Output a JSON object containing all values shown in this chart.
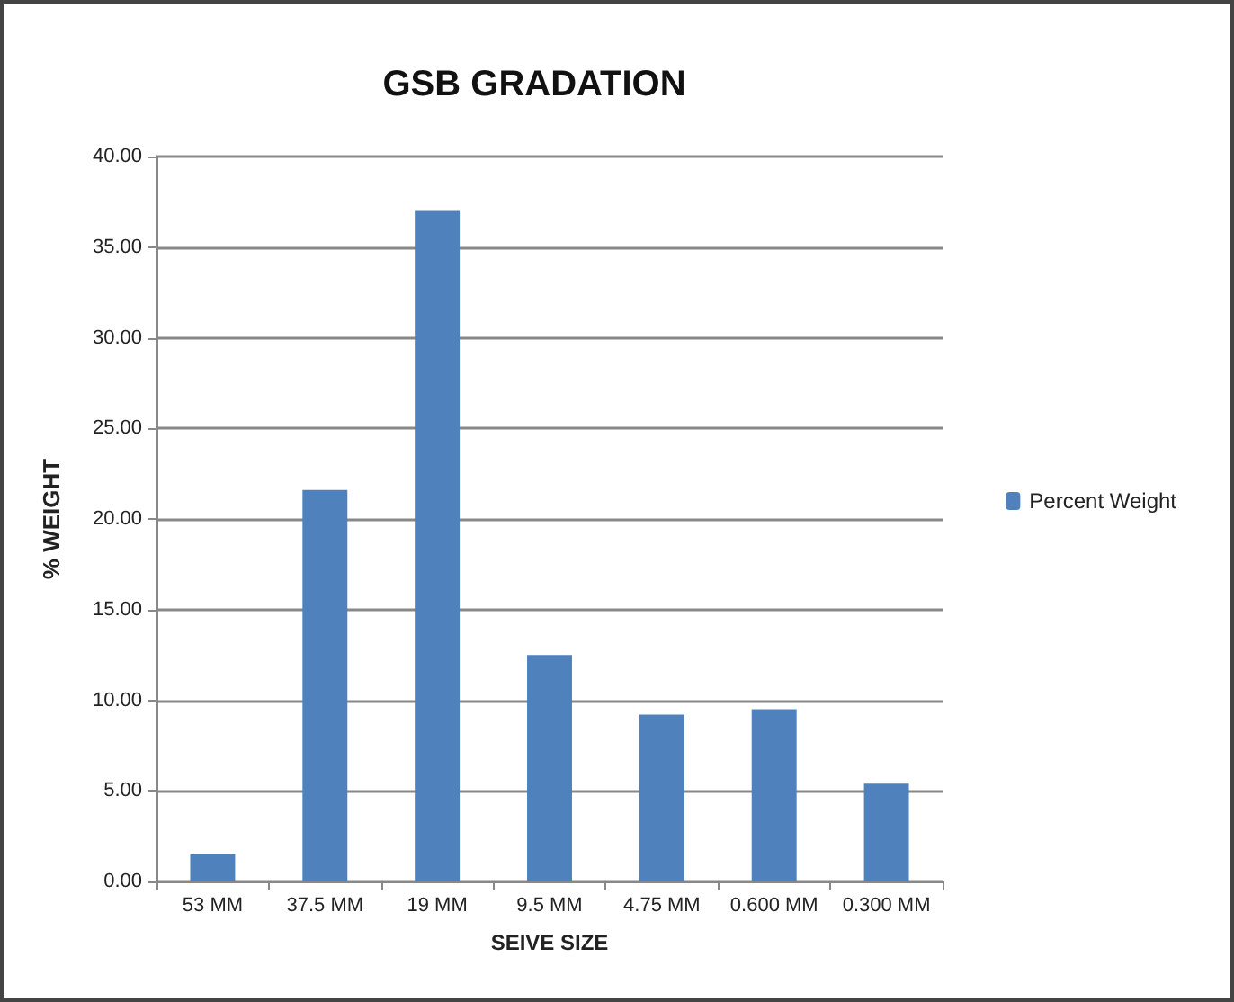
{
  "chart_data": {
    "type": "bar",
    "title": "GSB GRADATION",
    "xlabel": "SEIVE SIZE",
    "ylabel": "% WEIGHT",
    "categories": [
      "53 MM",
      "37.5 MM",
      "19 MM",
      "9.5 MM",
      "4.75 MM",
      "0.600 MM",
      "0.300 MM"
    ],
    "series": [
      {
        "name": "Percent Weight",
        "color": "#4f81bd",
        "values": [
          1.5,
          21.6,
          37.0,
          12.5,
          9.2,
          9.5,
          5.4
        ]
      }
    ],
    "ylim": [
      0,
      40
    ],
    "yticks": [
      {
        "value": 0,
        "label": "0.00"
      },
      {
        "value": 5,
        "label": "5.00"
      },
      {
        "value": 10,
        "label": "10.00"
      },
      {
        "value": 15,
        "label": "15.00"
      },
      {
        "value": 20,
        "label": "20.00"
      },
      {
        "value": 25,
        "label": "25.00"
      },
      {
        "value": 30,
        "label": "30.00"
      },
      {
        "value": 35,
        "label": "35.00"
      },
      {
        "value": 40,
        "label": "40.00"
      }
    ],
    "grid": "y",
    "legend": "right"
  }
}
